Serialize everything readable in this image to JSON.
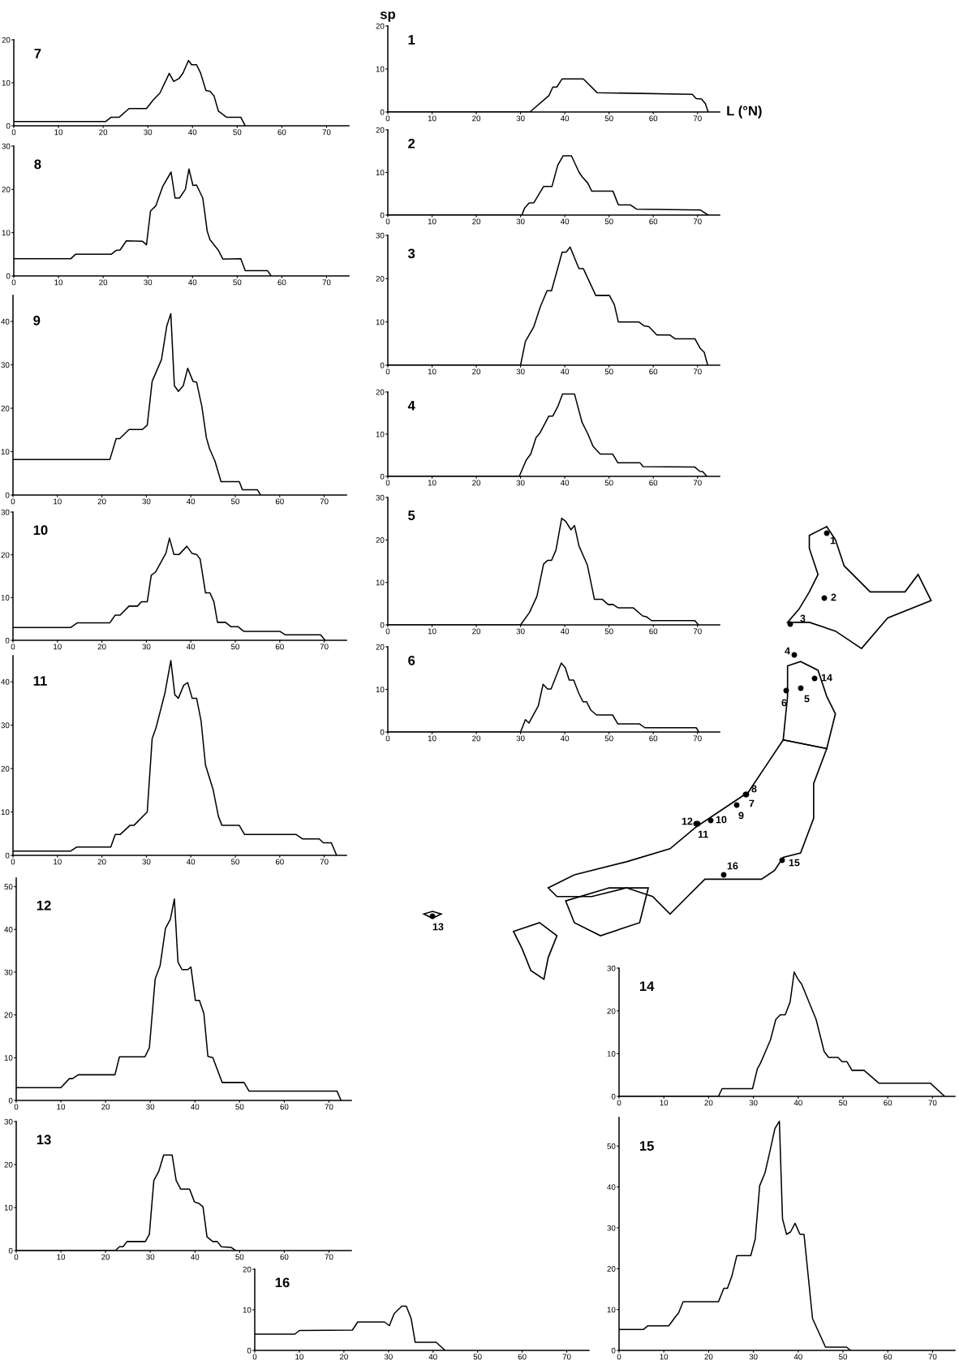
{
  "chart_data": [
    {
      "type": "line",
      "title": "1",
      "ylabel": "sp",
      "xlabel": "L (°N)",
      "color": "#000000",
      "xlim": [
        0,
        75
      ],
      "ylim": [
        0,
        20
      ],
      "xticks": [
        0,
        10,
        20,
        30,
        40,
        50,
        60,
        70
      ],
      "yticks": [
        0,
        10,
        20
      ],
      "x": [
        0,
        32.1,
        36.4,
        37.3,
        38.2,
        39.4,
        44.2,
        47.3,
        68.8,
        69.7,
        70.9,
        71.8,
        72.4
      ],
      "values": [
        0,
        0,
        3.8,
        5.8,
        5.8,
        7.7,
        7.7,
        4.5,
        4.1,
        3.1,
        3,
        1.9,
        0
      ]
    },
    {
      "type": "line",
      "title": "2",
      "color": "#000000",
      "xlim": [
        0,
        75
      ],
      "ylim": [
        0,
        20
      ],
      "xticks": [
        0,
        10,
        20,
        30,
        40,
        50,
        60,
        70
      ],
      "yticks": [
        0,
        10,
        20
      ],
      "x": [
        0,
        30.3,
        30.9,
        31.9,
        33,
        35.2,
        37.1,
        38.4,
        39.6,
        41.5,
        43.2,
        43.9,
        45.2,
        46.1,
        50.9,
        52.1,
        54.8,
        56.2,
        70.6,
        72.4
      ],
      "values": [
        0,
        0,
        1.6,
        2.8,
        2.9,
        6.7,
        6.7,
        11.7,
        13.9,
        13.9,
        10.1,
        9,
        7.5,
        5.6,
        5.6,
        2.4,
        2.4,
        1.4,
        1.2,
        0
      ]
    },
    {
      "type": "line",
      "title": "3",
      "color": "#000000",
      "xlim": [
        0,
        75
      ],
      "ylim": [
        0,
        30
      ],
      "xticks": [
        0,
        10,
        20,
        30,
        40,
        50,
        60,
        70
      ],
      "yticks": [
        0,
        10,
        20,
        30
      ],
      "x": [
        0,
        30,
        31.1,
        33,
        34.5,
        36,
        37,
        39.4,
        40.3,
        41.2,
        43.2,
        44.2,
        47,
        50.1,
        51.2,
        52.1,
        56.7,
        57.9,
        59,
        60.8,
        63.7,
        64.9,
        69.4,
        70.6,
        71.5,
        72.3
      ],
      "values": [
        0,
        0,
        5.5,
        8.9,
        13.6,
        17.2,
        17.2,
        26.1,
        26.1,
        27.3,
        22.3,
        22.3,
        16.1,
        16.1,
        14,
        10,
        10,
        9.1,
        8.9,
        7,
        7,
        6.1,
        6.1,
        3.9,
        3,
        0
      ]
    },
    {
      "type": "line",
      "title": "4",
      "color": "#000000",
      "xlim": [
        0,
        75
      ],
      "ylim": [
        0,
        20
      ],
      "xticks": [
        0,
        10,
        20,
        30,
        40,
        50,
        60,
        70
      ],
      "yticks": [
        0,
        10,
        20
      ],
      "x": [
        0,
        29.7,
        31.3,
        32.3,
        33.5,
        34.4,
        36.4,
        37.3,
        38.4,
        39.5,
        42.2,
        43.9,
        45.2,
        46.4,
        48,
        50.8,
        52,
        57,
        57.7,
        69.4,
        70.5,
        71.2,
        72.1
      ],
      "values": [
        0,
        0,
        3.9,
        5.3,
        9.2,
        10.3,
        14.3,
        14.3,
        16.5,
        19.5,
        19.5,
        12.8,
        10.1,
        7.1,
        5.3,
        5.3,
        3.2,
        3.2,
        2.3,
        2.2,
        1.2,
        1.1,
        0
      ]
    },
    {
      "type": "line",
      "title": "5",
      "color": "#000000",
      "xlim": [
        0,
        75
      ],
      "ylim": [
        0,
        30
      ],
      "xticks": [
        0,
        10,
        20,
        30,
        40,
        50,
        60,
        70
      ],
      "yticks": [
        0,
        10,
        20,
        30
      ],
      "x": [
        0,
        30,
        32,
        33.7,
        35.2,
        36.1,
        37,
        38,
        39.3,
        40.2,
        41.4,
        42.2,
        43.2,
        45.1,
        46.7,
        48.5,
        49.8,
        50.9,
        52.1,
        55.5,
        57.6,
        58.5,
        59.6,
        69.4,
        70.2
      ],
      "values": [
        0,
        0,
        2.9,
        6.7,
        14.3,
        15.2,
        15.2,
        17.6,
        25.1,
        24.4,
        22.4,
        23.4,
        18.6,
        14.1,
        6,
        6,
        4.8,
        4.8,
        4,
        4,
        2.1,
        1.9,
        1,
        1,
        0
      ]
    },
    {
      "type": "line",
      "title": "6",
      "color": "#000000",
      "xlim": [
        0,
        75
      ],
      "ylim": [
        0,
        20
      ],
      "xticks": [
        0,
        10,
        20,
        30,
        40,
        50,
        60,
        70
      ],
      "yticks": [
        0,
        10,
        20
      ],
      "x": [
        0,
        30,
        31.1,
        31.9,
        34,
        35.1,
        36.1,
        36.9,
        39.2,
        40.1,
        41,
        42,
        43.2,
        44.1,
        44.9,
        45.9,
        47.2,
        50.8,
        52,
        56.9,
        58.1,
        69.7,
        70.3
      ],
      "values": [
        0,
        0,
        2.9,
        2.1,
        6.1,
        11.2,
        10.1,
        10.1,
        16.2,
        15.1,
        12.2,
        12.2,
        9,
        7.1,
        7.1,
        5.1,
        4,
        4,
        1.9,
        1.9,
        1,
        1,
        0
      ]
    },
    {
      "type": "line",
      "title": "7",
      "color": "#000000",
      "xlim": [
        0,
        75
      ],
      "ylim": [
        0,
        20
      ],
      "xticks": [
        0,
        10,
        20,
        30,
        40,
        50,
        60,
        70
      ],
      "yticks": [
        0,
        10,
        20
      ],
      "x": [
        0,
        20.6,
        21.8,
        23.6,
        25.8,
        29.7,
        31.2,
        32.7,
        34.8,
        35.8,
        37,
        37.9,
        39.1,
        39.8,
        40.9,
        41.8,
        43,
        43.9,
        44.8,
        45.8,
        47.6,
        50.8,
        51.8
      ],
      "values": [
        1,
        1,
        2,
        2,
        4,
        4,
        6,
        7.6,
        12.2,
        10.3,
        11,
        12.3,
        15.2,
        14.2,
        14.2,
        12.3,
        8.2,
        8,
        7,
        3.4,
        2,
        2,
        0
      ]
    },
    {
      "type": "line",
      "title": "8",
      "color": "#000000",
      "xlim": [
        0,
        75
      ],
      "ylim": [
        0,
        30
      ],
      "xticks": [
        0,
        10,
        20,
        30,
        40,
        50,
        60,
        70
      ],
      "yticks": [
        0,
        10,
        20,
        30
      ],
      "x": [
        0,
        12.8,
        13.8,
        21.8,
        22.9,
        23.8,
        25.2,
        28.8,
        29.7,
        30.6,
        31.8,
        33.3,
        35.2,
        36.1,
        37.1,
        38.4,
        39.2,
        40.1,
        40.9,
        42.3,
        43.3,
        43.9,
        45.8,
        46.8,
        50.8,
        51.8,
        56.8,
        57.6
      ],
      "values": [
        4,
        4,
        5,
        5,
        5.9,
        6,
        8.1,
        8,
        7.2,
        15,
        16.2,
        20.6,
        24,
        18,
        18,
        20,
        24.7,
        20.9,
        21,
        18,
        10.3,
        8.4,
        5.9,
        3.9,
        4,
        1.2,
        1.2,
        0
      ]
    },
    {
      "type": "line",
      "title": "9",
      "color": "#000000",
      "xlim": [
        0,
        75
      ],
      "ylim": [
        0,
        46
      ],
      "xticks": [
        0,
        10,
        20,
        30,
        40,
        50,
        60,
        70
      ],
      "yticks": [
        0,
        10,
        20,
        30,
        40
      ],
      "x": [
        0,
        21.8,
        23.2,
        24,
        26.1,
        29.1,
        30.2,
        31.3,
        33.4,
        34.6,
        35.5,
        36.3,
        37.2,
        38.3,
        39.3,
        40.5,
        41.3,
        42.5,
        43.5,
        44.2,
        45.4,
        46.8,
        50.9,
        51.6,
        55,
        55.7
      ],
      "values": [
        8.2,
        8.2,
        13,
        13,
        15.1,
        15.1,
        16.1,
        26.2,
        31.2,
        39,
        41.8,
        25.2,
        23.9,
        25.2,
        29.2,
        26.2,
        26,
        20.3,
        13.2,
        10.7,
        7.9,
        3.1,
        3.1,
        1.2,
        1.2,
        0
      ]
    },
    {
      "type": "line",
      "title": "10",
      "color": "#000000",
      "xlim": [
        0,
        75
      ],
      "ylim": [
        0,
        30
      ],
      "xticks": [
        0,
        10,
        20,
        30,
        40,
        50,
        60,
        70
      ],
      "yticks": [
        0,
        10,
        20,
        30
      ],
      "x": [
        0,
        13,
        14.5,
        21.8,
        23,
        24.1,
        26.1,
        28,
        28.9,
        30.2,
        31.1,
        32.1,
        34.4,
        35.2,
        36.2,
        37.4,
        39.1,
        40.3,
        41.3,
        42.1,
        43.3,
        44.3,
        45.2,
        46,
        47.8,
        49,
        50.6,
        51.9,
        60,
        61.2,
        69.2,
        70.2
      ],
      "values": [
        3,
        3,
        4.1,
        4.1,
        5.9,
        5.9,
        8,
        8,
        9,
        9,
        15.2,
        16,
        20.4,
        23.9,
        20.1,
        20.1,
        22,
        20.3,
        20.1,
        19,
        11.1,
        11.1,
        9,
        4.2,
        4.2,
        3.2,
        3.2,
        2.1,
        2.1,
        1.3,
        1.3,
        0
      ]
    },
    {
      "type": "line",
      "title": "11",
      "color": "#000000",
      "xlim": [
        0,
        75
      ],
      "ylim": [
        0,
        46
      ],
      "xticks": [
        0,
        10,
        20,
        30,
        40,
        50,
        60,
        70
      ],
      "yticks": [
        0,
        10,
        20,
        30,
        40
      ],
      "x": [
        0,
        13,
        14.3,
        22,
        23,
        24.1,
        26.3,
        27.2,
        30.2,
        31.3,
        32.2,
        34.2,
        35.5,
        36.4,
        37.2,
        38.4,
        39.3,
        40.3,
        41.3,
        42.3,
        43.3,
        45,
        46.2,
        47,
        50.9,
        52.1,
        63.7,
        65.1,
        68.9,
        69.8,
        71.6,
        72.8
      ],
      "values": [
        1,
        1,
        1.9,
        1.9,
        4.8,
        4.8,
        6.9,
        6.9,
        10,
        26.9,
        29.5,
        37.5,
        44.9,
        37,
        36.2,
        39.2,
        39.8,
        36.2,
        36.2,
        31,
        20.8,
        15.2,
        9,
        6.9,
        6.9,
        4.8,
        4.8,
        3.8,
        3.8,
        2.9,
        2.9,
        0
      ]
    },
    {
      "type": "line",
      "title": "12",
      "color": "#000000",
      "xlim": [
        0,
        75
      ],
      "ylim": [
        0,
        52
      ],
      "xticks": [
        0,
        10,
        20,
        30,
        40,
        50,
        60,
        70
      ],
      "yticks": [
        0,
        10,
        20,
        30,
        40,
        50
      ],
      "x": [
        0,
        10,
        11.9,
        12.6,
        13.9,
        22.1,
        23.1,
        28.8,
        29.8,
        31.1,
        32.2,
        33.4,
        34.5,
        35.4,
        36.2,
        37.1,
        38.4,
        39.1,
        40.1,
        41,
        42,
        42.9,
        44,
        46.1,
        51,
        52.1,
        71.8,
        72.7
      ],
      "values": [
        3,
        3,
        5.1,
        5.1,
        6,
        6,
        10.2,
        10.2,
        12.3,
        28.4,
        31.5,
        40.2,
        42.4,
        47.1,
        32.4,
        30.6,
        30.6,
        31.2,
        23.4,
        23.4,
        20.3,
        10.3,
        10,
        4.2,
        4.2,
        2.2,
        2.2,
        0
      ]
    },
    {
      "type": "line",
      "title": "13",
      "color": "#000000",
      "xlim": [
        0,
        75
      ],
      "ylim": [
        0,
        30
      ],
      "xticks": [
        0,
        10,
        20,
        30,
        40,
        50,
        60,
        70
      ],
      "yticks": [
        0,
        10,
        20,
        30
      ],
      "x": [
        0,
        22.2,
        23.1,
        23.9,
        24.8,
        28.9,
        29.8,
        30.8,
        31.9,
        33,
        34.9,
        35.8,
        36.8,
        38.8,
        39.9,
        40.8,
        41.8,
        42.7,
        44,
        45,
        45.9,
        48.2,
        49.1
      ],
      "values": [
        0,
        0,
        0.9,
        0.9,
        2.1,
        2.1,
        3.8,
        16.3,
        18.4,
        22.2,
        22.2,
        16.3,
        14.3,
        14.3,
        11.3,
        11,
        10.2,
        3.2,
        2.1,
        2.1,
        0.9,
        0.7,
        0
      ]
    },
    {
      "type": "line",
      "title": "14",
      "color": "#000000",
      "xlim": [
        0,
        75
      ],
      "ylim": [
        0,
        30
      ],
      "xticks": [
        0,
        10,
        20,
        30,
        40,
        50,
        60,
        70
      ],
      "yticks": [
        0,
        10,
        20,
        30
      ],
      "x": [
        0,
        22.2,
        23,
        29.8,
        30.9,
        31.6,
        33.8,
        35,
        36,
        37.1,
        38.2,
        39.1,
        39.9,
        40.8,
        44,
        45.8,
        46.8,
        48.9,
        49.8,
        50.9,
        52,
        54.7,
        58,
        69.5,
        72.7
      ],
      "values": [
        0,
        0,
        1.8,
        1.8,
        6.5,
        7.8,
        13.2,
        18,
        19.1,
        19.1,
        22.1,
        29.1,
        27.5,
        26.2,
        18,
        10.5,
        9.1,
        9.1,
        8.1,
        8.1,
        6.1,
        6.1,
        3.1,
        3.1,
        0
      ]
    },
    {
      "type": "line",
      "title": "15",
      "color": "#000000",
      "xlim": [
        0,
        75
      ],
      "ylim": [
        0,
        57
      ],
      "xticks": [
        0,
        10,
        20,
        30,
        40,
        50,
        60,
        70
      ],
      "yticks": [
        0,
        10,
        20,
        30,
        40,
        50
      ],
      "x": [
        0,
        5.4,
        6.4,
        11.1,
        12.5,
        13.3,
        14.3,
        22.2,
        23.4,
        24.2,
        25.2,
        26.3,
        29.4,
        30.4,
        31.4,
        32.6,
        33.6,
        34.8,
        35.8,
        36.5,
        37.4,
        38.3,
        39.3,
        40.4,
        41.3,
        43.2,
        46.1,
        50.8,
        51.7
      ],
      "values": [
        5.1,
        5.1,
        6,
        6,
        8.1,
        9.2,
        11.9,
        11.9,
        15.2,
        15.2,
        18.2,
        23.2,
        23.2,
        27.2,
        40.3,
        43.5,
        48.3,
        54.3,
        56.1,
        32.2,
        28.4,
        29,
        31.1,
        28.4,
        28.4,
        7.8,
        0.8,
        0.8,
        0
      ]
    },
    {
      "type": "line",
      "title": "16",
      "color": "#000000",
      "xlim": [
        0,
        75
      ],
      "ylim": [
        0,
        20
      ],
      "xticks": [
        0,
        10,
        20,
        30,
        40,
        50,
        60,
        70
      ],
      "yticks": [
        0,
        10,
        20
      ],
      "x": [
        0,
        9,
        10,
        21.9,
        23.1,
        29.1,
        30.2,
        31.3,
        33,
        34,
        35.1,
        36,
        40.7,
        42.7
      ],
      "values": [
        4,
        4,
        4.9,
        5,
        7,
        7,
        6.1,
        9.1,
        10.9,
        10.9,
        7.8,
        2,
        2,
        0
      ]
    },
    {
      "type": "other",
      "annotations": [
        "1",
        "2",
        "3",
        "4",
        "5",
        "6",
        "7",
        "8",
        "9",
        "10",
        "11",
        "12",
        "13",
        "14",
        "15",
        "16"
      ]
    }
  ]
}
